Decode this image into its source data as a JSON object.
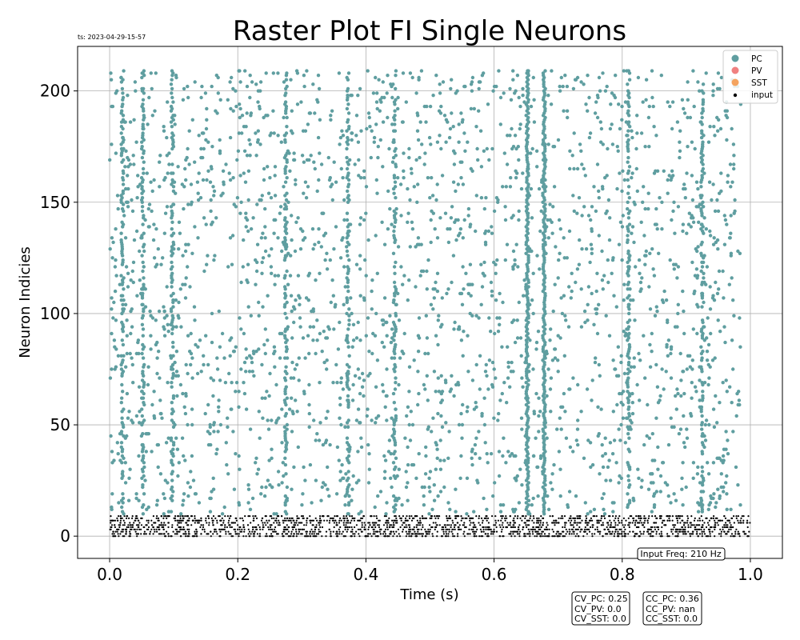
{
  "timestamp": "ts: 2023-04-29-15-57",
  "input_freq_label": "Input Freq: 210 Hz",
  "stats_box_cv": [
    "CV_PC: 0.25",
    "CV_PV: 0.0",
    "CV_SST: 0.0"
  ],
  "stats_box_cc": [
    "CC_PC: 0.36",
    "CC_PV: nan",
    "CC_SST: 0.0"
  ],
  "colors": {
    "PC": "#5f9ea0",
    "PV": "#f08080",
    "SST": "#f4a460",
    "input": "#000000",
    "grid": "#b0b0b0"
  },
  "chart_data": {
    "type": "scatter",
    "title": "Raster Plot FI Single Neurons",
    "xlabel": "Time (s)",
    "ylabel": "Neuron Indicies",
    "xlim": [
      -0.05,
      1.05
    ],
    "ylim": [
      -10,
      220
    ],
    "xticks": [
      0.0,
      0.2,
      0.4,
      0.6,
      0.8,
      1.0
    ],
    "xtick_labels": [
      "0.0",
      "0.2",
      "0.4",
      "0.6",
      "0.8",
      "1.0"
    ],
    "yticks": [
      0,
      50,
      100,
      150,
      200
    ],
    "ytick_labels": [
      "0",
      "50",
      "100",
      "150",
      "200"
    ],
    "grid": true,
    "legend_position": "top-right",
    "series": [
      {
        "name": "PC",
        "neuron_range": [
          10,
          209
        ],
        "approx_spikes_per_neuron": 40,
        "synchronous_burst_times": [
          0.02,
          0.052,
          0.098,
          0.275,
          0.372,
          0.445,
          0.652,
          0.678,
          0.81,
          0.925
        ],
        "note_full_column_burst_times": [
          0.652,
          0.678
        ]
      },
      {
        "name": "PV",
        "neuron_range": [],
        "approx_spikes_per_neuron": 0
      },
      {
        "name": "SST",
        "neuron_range": [],
        "approx_spikes_per_neuron": 0
      },
      {
        "name": "input",
        "neuron_range": [
          0,
          9
        ],
        "approx_rate_hz": 210,
        "time_range": [
          0.0,
          1.0
        ]
      }
    ]
  }
}
